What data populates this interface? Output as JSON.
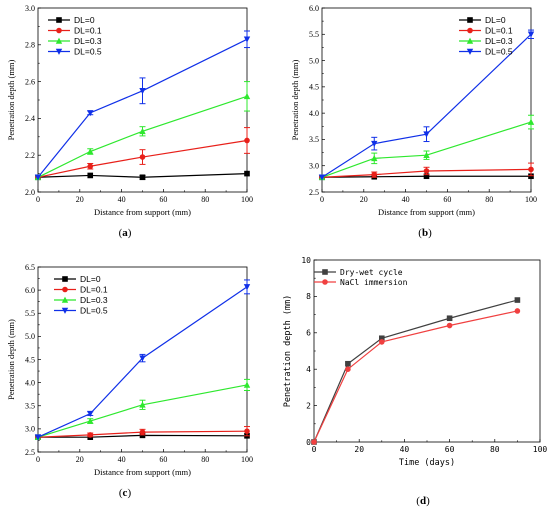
{
  "chart_data": [
    {
      "type": "line",
      "panel_label": "(a)",
      "xlabel": "Distance from support (mm)",
      "ylabel": "Penetration depth (mm)",
      "xlim": [
        0,
        100
      ],
      "ylim": [
        2.0,
        3.0
      ],
      "xticks": [
        0,
        20,
        40,
        60,
        80,
        100
      ],
      "yticks": [
        2.0,
        2.2,
        2.4,
        2.6,
        2.8,
        3.0
      ],
      "tick_decimals": 1,
      "x": [
        0,
        25,
        50,
        100
      ],
      "legend_position": "top-left",
      "series": [
        {
          "name": "DL=0",
          "color": "#000000",
          "marker": "square",
          "values": [
            2.08,
            2.09,
            2.08,
            2.1
          ],
          "errors": [
            0,
            0,
            0.01,
            0
          ]
        },
        {
          "name": "DL=0.1",
          "color": "#e8201a",
          "marker": "circle",
          "values": [
            2.08,
            2.14,
            2.19,
            2.28
          ],
          "errors": [
            0,
            0.015,
            0.04,
            0.07
          ]
        },
        {
          "name": "DL=0.3",
          "color": "#2ee82e",
          "marker": "triangle-up",
          "values": [
            2.08,
            2.22,
            2.33,
            2.52
          ],
          "errors": [
            0,
            0.015,
            0.025,
            0.08
          ]
        },
        {
          "name": "DL=0.5",
          "color": "#1030e8",
          "marker": "triangle-down",
          "values": [
            2.08,
            2.43,
            2.55,
            2.83
          ],
          "errors": [
            0,
            0.01,
            0.07,
            0.045
          ]
        }
      ]
    },
    {
      "type": "line",
      "panel_label": "(b)",
      "xlabel": "Distance from support (mm)",
      "ylabel": "Penetration depth (mm)",
      "xlim": [
        0,
        100
      ],
      "ylim": [
        2.5,
        6.0
      ],
      "xticks": [
        0,
        20,
        40,
        60,
        80,
        100
      ],
      "yticks": [
        2.5,
        3.0,
        3.5,
        4.0,
        4.5,
        5.0,
        5.5,
        6.0
      ],
      "tick_decimals": 1,
      "x": [
        0,
        25,
        50,
        100
      ],
      "legend_position": "top-right",
      "series": [
        {
          "name": "DL=0",
          "color": "#000000",
          "marker": "square",
          "values": [
            2.78,
            2.79,
            2.8,
            2.8
          ],
          "errors": [
            0,
            0,
            0,
            0
          ]
        },
        {
          "name": "DL=0.1",
          "color": "#e8201a",
          "marker": "circle",
          "values": [
            2.78,
            2.83,
            2.9,
            2.93
          ],
          "errors": [
            0,
            0.05,
            0.07,
            0.12
          ]
        },
        {
          "name": "DL=0.3",
          "color": "#2ee82e",
          "marker": "triangle-up",
          "values": [
            2.78,
            3.14,
            3.2,
            3.83
          ],
          "errors": [
            0,
            0.1,
            0.08,
            0.13
          ]
        },
        {
          "name": "DL=0.5",
          "color": "#1030e8",
          "marker": "triangle-down",
          "values": [
            2.78,
            3.42,
            3.6,
            5.5
          ],
          "errors": [
            0,
            0.12,
            0.14,
            0.08
          ]
        }
      ]
    },
    {
      "type": "line",
      "panel_label": "(c)",
      "xlabel": "Distance from support (mm)",
      "ylabel": "Penetration depth (mm)",
      "xlim": [
        0,
        100
      ],
      "ylim": [
        2.5,
        6.5
      ],
      "xticks": [
        0,
        20,
        40,
        60,
        80,
        100
      ],
      "yticks": [
        2.5,
        3.0,
        3.5,
        4.0,
        4.5,
        5.0,
        5.5,
        6.0,
        6.5
      ],
      "tick_decimals": 1,
      "x": [
        0,
        25,
        50,
        100
      ],
      "legend_position": "top-left",
      "series": [
        {
          "name": "DL=0",
          "color": "#000000",
          "marker": "square",
          "values": [
            2.82,
            2.82,
            2.86,
            2.85
          ],
          "errors": [
            0,
            0,
            0,
            0
          ]
        },
        {
          "name": "DL=0.1",
          "color": "#e8201a",
          "marker": "circle",
          "values": [
            2.82,
            2.87,
            2.93,
            2.95
          ],
          "errors": [
            0,
            0.04,
            0.06,
            0.1
          ]
        },
        {
          "name": "DL=0.3",
          "color": "#2ee82e",
          "marker": "triangle-up",
          "values": [
            2.82,
            3.17,
            3.52,
            3.95
          ],
          "errors": [
            0,
            0.05,
            0.1,
            0.12
          ]
        },
        {
          "name": "DL=0.5",
          "color": "#1030e8",
          "marker": "triangle-down",
          "values": [
            2.82,
            3.33,
            4.53,
            6.07
          ],
          "errors": [
            0,
            0.04,
            0.08,
            0.15
          ]
        }
      ]
    },
    {
      "type": "line",
      "panel_label": "(d)",
      "xlabel": "Time (days)",
      "ylabel": "Penetration depth (mm)",
      "xlim": [
        0,
        100
      ],
      "ylim": [
        0,
        10
      ],
      "xticks": [
        0,
        20,
        40,
        60,
        80,
        100
      ],
      "yticks": [
        0,
        2,
        4,
        6,
        8,
        10
      ],
      "tick_decimals": 0,
      "x": [
        0,
        15,
        30,
        60,
        90
      ],
      "legend_position": "top-left",
      "series": [
        {
          "name": "Dry-wet cycle",
          "color": "#404040",
          "marker": "square",
          "values": [
            0,
            4.3,
            5.7,
            6.8,
            7.8
          ]
        },
        {
          "name": "NaCl immersion",
          "color": "#f04040",
          "marker": "circle",
          "values": [
            0,
            4.0,
            5.5,
            6.4,
            7.2
          ]
        }
      ]
    }
  ]
}
